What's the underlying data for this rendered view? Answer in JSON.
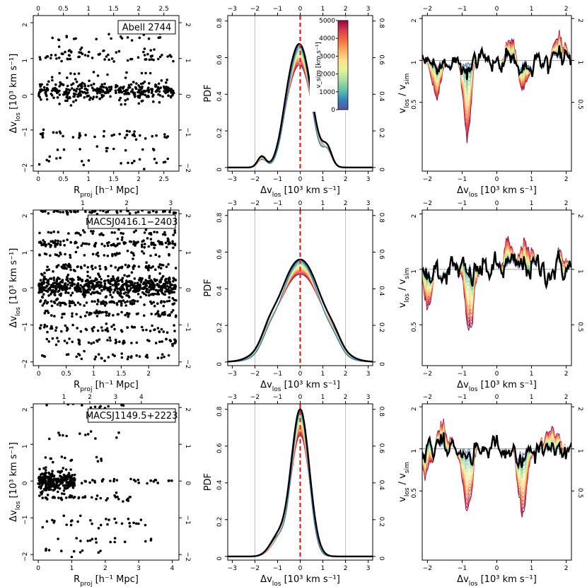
{
  "colors": {
    "points": "#000000",
    "ref_line": "#e0201b",
    "grid": "#bdbdbd",
    "black_curve": "#000000",
    "palette": [
      "#5e4fa2",
      "#3288bd",
      "#66c2a5",
      "#abdda4",
      "#e6f598",
      "#fee08b",
      "#fdae61",
      "#f46d43",
      "#d53e4f",
      "#9e0142"
    ]
  },
  "chart_data": [
    {
      "type": "scatter",
      "panel": "Abell 2744 scatter",
      "cluster": "Abell 2744",
      "xlabel": "R_proj [h⁻¹ Mpc]",
      "ylabel": "Δv_los [10³ km s⁻¹]",
      "xlim": [
        -0.1,
        2.8
      ],
      "ylim": [
        -2.15,
        2.2
      ],
      "xticks": [
        0,
        0.5,
        1,
        1.5,
        2,
        2.5
      ],
      "xtick_labels": [
        "0",
        "0.5",
        "1",
        "1.5",
        "2",
        "2.5"
      ],
      "top_ticks": [
        0,
        0.5,
        1,
        1.5,
        2,
        2.5
      ],
      "top_tick_labels": [
        "0",
        "0.5",
        "1",
        "1.5",
        "2",
        "2.5"
      ],
      "yticks": [
        -2,
        -1,
        0,
        1,
        2
      ],
      "ytick_labels": [
        "−2",
        "−1",
        "0",
        "1",
        "2"
      ],
      "bands": [
        {
          "y": 0.1,
          "spread": 0.13,
          "n": 330,
          "xmax": 2.7
        },
        {
          "y": 1.05,
          "spread": 0.1,
          "n": 75,
          "xmax": 2.7
        },
        {
          "y": -1.15,
          "spread": 0.07,
          "n": 40,
          "xmax": 2.7
        },
        {
          "y": 1.6,
          "spread": 0.05,
          "n": 20,
          "xmax": 2.5
        },
        {
          "y": -1.9,
          "spread": 0.08,
          "n": 20,
          "xmax": 2.6
        },
        {
          "y": -1.55,
          "spread": 0.04,
          "n": 12,
          "xmax": 2.4
        },
        {
          "y": 0.6,
          "spread": 0.04,
          "n": 10,
          "xmax": 2.3
        }
      ]
    },
    {
      "type": "line",
      "panel": "Abell 2744 PDF",
      "xlabel": "Δv_los [10³ km s⁻¹]",
      "ylabel": "PDF",
      "xlim": [
        -3.2,
        3.2
      ],
      "ylim": [
        -0.02,
        0.83
      ],
      "xticks": [
        -3,
        -2,
        -1,
        0,
        1,
        2,
        3
      ],
      "xtick_labels": [
        "−3",
        "−2",
        "−1",
        "0",
        "1",
        "2",
        "3"
      ],
      "top_ticks": [
        -3,
        -2,
        -1,
        0,
        1,
        2,
        3
      ],
      "top_tick_labels": [
        "−3",
        "−2",
        "−1",
        "0",
        "1",
        "2",
        "3"
      ],
      "yticks": [
        0,
        0.2,
        0.4,
        0.6,
        0.8
      ],
      "ytick_labels": [
        "0",
        "0.2",
        "0.4",
        "0.6",
        "0.8"
      ],
      "right_ticks": [
        0,
        0.2,
        0.4,
        0.6,
        0.8
      ],
      "right_tick_labels": [
        "0",
        "0.2",
        "0.4",
        "0.6",
        "0.8"
      ],
      "black_curve": {
        "peak": 0.66,
        "width": 0.5,
        "extra": [
          {
            "mu": -1.7,
            "amp": 0.06,
            "sig": 0.18
          },
          {
            "mu": 1.2,
            "amp": 0.09,
            "sig": 0.2
          },
          {
            "mu": -0.6,
            "amp": 0.1,
            "sig": 0.3
          }
        ]
      },
      "peak_range": [
        0.55,
        0.66
      ]
    },
    {
      "type": "line",
      "panel": "Abell 2744 ratio",
      "xlabel": "Δv_los [10³ km s⁻¹]",
      "ylabel": "v_los / v_sim",
      "xlim": [
        -2.15,
        2.15
      ],
      "ylim": [
        0.16,
        2.1
      ],
      "log_y": true,
      "xticks": [
        -2,
        -1,
        0,
        1,
        2
      ],
      "xtick_labels": [
        "−2",
        "−1",
        "0",
        "1",
        "2"
      ],
      "top_ticks": [
        -2,
        -1,
        0,
        1,
        2
      ],
      "top_tick_labels": [
        "−2",
        "−1",
        "0",
        "1",
        "2"
      ],
      "yticks": [
        0.5,
        1,
        2
      ],
      "ytick_labels": [
        "0.5",
        "1",
        "2"
      ]
    },
    {
      "type": "scatter",
      "panel": "MACSJ0416.1-2403 scatter",
      "cluster": "MACSJ0416.1−2403",
      "xlabel": "R_proj [h⁻¹ Mpc]",
      "ylabel": "Δv_los [10³ km s⁻¹]",
      "xlim": [
        -0.1,
        2.55
      ],
      "ylim": [
        -2.1,
        2.1
      ],
      "xticks": [
        0,
        0.5,
        1,
        1.5,
        2
      ],
      "xtick_labels": [
        "0",
        "0.5",
        "1",
        "1.5",
        "2"
      ],
      "top_ticks": [
        1,
        2,
        3
      ],
      "top_tick_labels": [
        "1",
        "2",
        "3"
      ],
      "top_scale": 1.25,
      "yticks": [
        -2,
        -1,
        0,
        1,
        2
      ],
      "ytick_labels": [
        "−2",
        "−1",
        "0",
        "1",
        "2"
      ],
      "bands": [
        {
          "y": 0.05,
          "spread": 0.14,
          "n": 600,
          "xmax": 2.5
        },
        {
          "y": 1.2,
          "spread": 0.06,
          "n": 120,
          "xmax": 2.5
        },
        {
          "y": 0.55,
          "spread": 0.05,
          "n": 80,
          "xmax": 2.5
        },
        {
          "y": -0.4,
          "spread": 0.05,
          "n": 90,
          "xmax": 2.5
        },
        {
          "y": -0.7,
          "spread": 0.04,
          "n": 70,
          "xmax": 2.5
        },
        {
          "y": -1.1,
          "spread": 0.05,
          "n": 60,
          "xmax": 2.5
        },
        {
          "y": -1.45,
          "spread": 0.04,
          "n": 50,
          "xmax": 2.5
        },
        {
          "y": 1.5,
          "spread": 0.04,
          "n": 40,
          "xmax": 2.5
        },
        {
          "y": 2.05,
          "spread": 0.03,
          "n": 60,
          "xmax": 2.5
        },
        {
          "y": -1.85,
          "spread": 0.05,
          "n": 35,
          "xmax": 2.5
        },
        {
          "y": 0.9,
          "spread": 0.04,
          "n": 40,
          "xmax": 2.4
        }
      ]
    },
    {
      "type": "line",
      "panel": "MACSJ0416.1-2403 PDF",
      "xlabel": "Δv_los [10³ km s⁻¹]",
      "ylabel": "PDF",
      "xlim": [
        -3.2,
        3.2
      ],
      "ylim": [
        -0.02,
        0.83
      ],
      "xticks": [
        -3,
        -2,
        -1,
        0,
        1,
        2,
        3
      ],
      "xtick_labels": [
        "−3",
        "−2",
        "−1",
        "0",
        "1",
        "2",
        "3"
      ],
      "top_ticks": [
        -3,
        -2,
        -1,
        0,
        1,
        2,
        3
      ],
      "top_tick_labels": [
        "−3",
        "−2",
        "−1",
        "0",
        "1",
        "2",
        "3"
      ],
      "yticks": [
        0,
        0.2,
        0.4,
        0.6,
        0.8
      ],
      "ytick_labels": [
        "0",
        "0.2",
        "0.4",
        "0.6",
        "0.8"
      ],
      "right_ticks": [
        0,
        0.2,
        0.4,
        0.6,
        0.8
      ],
      "right_tick_labels": [
        "0",
        "0.2",
        "0.4",
        "0.6",
        "0.8"
      ],
      "black_curve": {
        "peak": 0.56,
        "width": 0.95,
        "extra": [
          {
            "mu": -1.4,
            "amp": 0.05,
            "sig": 0.3
          },
          {
            "mu": 1.5,
            "amp": 0.04,
            "sig": 0.3
          }
        ]
      },
      "peak_range": [
        0.48,
        0.56
      ]
    },
    {
      "type": "line",
      "panel": "MACSJ0416.1-2403 ratio",
      "xlabel": "Δv_los [10³ km s⁻¹]",
      "ylabel": "v_los / v_sim",
      "xlim": [
        -2.15,
        2.15
      ],
      "ylim": [
        0.3,
        2.1
      ],
      "log_y": true,
      "xticks": [
        -2,
        -1,
        0,
        1,
        2
      ],
      "xtick_labels": [
        "−2",
        "−1",
        "0",
        "1",
        "2"
      ],
      "top_ticks": [
        -2,
        -1,
        0,
        1,
        2
      ],
      "top_tick_labels": [
        "−2",
        "−1",
        "0",
        "1",
        "2"
      ],
      "yticks": [
        0.5,
        1,
        2
      ],
      "ytick_labels": [
        "0.5",
        "1",
        "2"
      ]
    },
    {
      "type": "scatter",
      "panel": "MACSJ1149.5+2223 scatter",
      "cluster": "MACSJ1149.5+2223",
      "xlabel": "R_proj [h⁻¹ Mpc]",
      "ylabel": "Δv_los [10³ km s⁻¹]",
      "xlim": [
        -0.15,
        4.2
      ],
      "ylim": [
        -2.15,
        2.1
      ],
      "xticks": [
        0,
        1,
        2,
        3,
        4
      ],
      "xtick_labels": [
        "0",
        "1",
        "2",
        "3",
        "4"
      ],
      "top_ticks": [
        1,
        2,
        3,
        4
      ],
      "top_tick_labels": [
        "1",
        "2",
        "3",
        "4"
      ],
      "top_scale": 1.3,
      "yticks": [
        -2,
        -1,
        0,
        1,
        2
      ],
      "ytick_labels": [
        "−2",
        "−1",
        "0",
        "1",
        "2"
      ],
      "bands": [
        {
          "y": 0.0,
          "spread": 0.14,
          "n": 260,
          "xmax": 1.1
        },
        {
          "y": 0.0,
          "spread": 0.04,
          "n": 40,
          "xmax": 4.1
        },
        {
          "y": -0.45,
          "spread": 0.05,
          "n": 40,
          "xmax": 2.8
        },
        {
          "y": -1.1,
          "spread": 0.08,
          "n": 30,
          "xmax": 3.2
        },
        {
          "y": -1.6,
          "spread": 0.05,
          "n": 15,
          "xmax": 3.6
        },
        {
          "y": 1.25,
          "spread": 0.05,
          "n": 12,
          "xmax": 2.8
        },
        {
          "y": 2.05,
          "spread": 0.03,
          "n": 12,
          "xmax": 2.6
        },
        {
          "y": -1.9,
          "spread": 0.05,
          "n": 10,
          "xmax": 2.4
        },
        {
          "y": 0.6,
          "spread": 0.05,
          "n": 12,
          "xmax": 2.0
        }
      ]
    },
    {
      "type": "line",
      "panel": "MACSJ1149.5+2223 PDF",
      "xlabel": "Δv_los [10³ km s⁻¹]",
      "ylabel": "PDF",
      "xlim": [
        -3.2,
        3.2
      ],
      "ylim": [
        -0.02,
        0.83
      ],
      "xticks": [
        -3,
        -2,
        -1,
        0,
        1,
        2,
        3
      ],
      "xtick_labels": [
        "−3",
        "−2",
        "−1",
        "0",
        "1",
        "2",
        "3"
      ],
      "top_ticks": [
        -3,
        -2,
        -1,
        0,
        1,
        2,
        3
      ],
      "top_tick_labels": [
        "−3",
        "−2",
        "−1",
        "0",
        "1",
        "2",
        "3"
      ],
      "yticks": [
        0,
        0.2,
        0.4,
        0.6,
        0.8
      ],
      "ytick_labels": [
        "0",
        "0.2",
        "0.4",
        "0.6",
        "0.8"
      ],
      "right_ticks": [
        0,
        0.2,
        0.4,
        0.6,
        0.8
      ],
      "right_tick_labels": [
        "0",
        "0.2",
        "0.4",
        "0.6",
        "0.8"
      ],
      "black_curve": {
        "peak": 0.8,
        "width": 0.4,
        "extra": [
          {
            "mu": -1.0,
            "amp": 0.1,
            "sig": 0.35
          }
        ]
      },
      "peak_range": [
        0.66,
        0.8
      ]
    },
    {
      "type": "line",
      "panel": "MACSJ1149.5+2223 ratio",
      "xlabel": "Δv_los [10³ km s⁻¹]",
      "ylabel": "v_los / v_sim",
      "xlim": [
        -2.15,
        2.15
      ],
      "ylim": [
        0.16,
        2.1
      ],
      "log_y": true,
      "xticks": [
        -2,
        -1,
        0,
        1,
        2
      ],
      "xtick_labels": [
        "−2",
        "−1",
        "0",
        "1",
        "2"
      ],
      "top_ticks": [
        -2,
        -1,
        0,
        1,
        2
      ],
      "top_tick_labels": [
        "−2",
        "−1",
        "0",
        "1",
        "2"
      ],
      "yticks": [
        0.5,
        1,
        2
      ],
      "ytick_labels": [
        "0.5",
        "1",
        "2"
      ]
    }
  ],
  "colorbar": {
    "label": "v_sim [km s⁻¹]",
    "range": [
      0,
      5000
    ],
    "ticks": [
      0,
      1000,
      2000,
      3000,
      4000,
      5000
    ],
    "tick_labels": [
      "0",
      "1000",
      "2000",
      "3000",
      "4000",
      "5000"
    ]
  }
}
